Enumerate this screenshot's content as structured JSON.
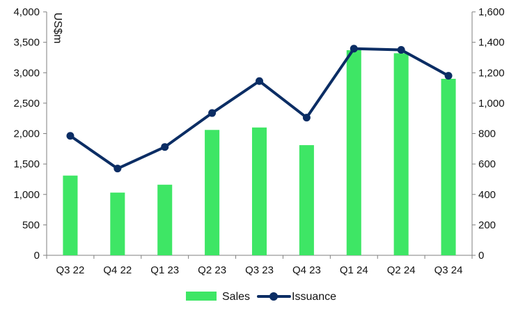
{
  "chart_data": {
    "type": "bar",
    "unit_label": "US$m",
    "categories": [
      "Q3 22",
      "Q4 22",
      "Q1 23",
      "Q2 23",
      "Q3 23",
      "Q4 23",
      "Q1 24",
      "Q2 24",
      "Q3 24"
    ],
    "series": [
      {
        "name": "Sales",
        "type": "bar",
        "axis": "left",
        "color": "#3ee665",
        "values": [
          1310,
          1030,
          1160,
          2060,
          2100,
          1810,
          3370,
          3320,
          2900
        ]
      },
      {
        "name": "Issuance",
        "type": "line",
        "axis": "right",
        "color": "#0b2d64",
        "values": [
          785,
          570,
          712,
          935,
          1145,
          905,
          1358,
          1350,
          1180
        ]
      }
    ],
    "y_left": {
      "min": 0,
      "max": 4000,
      "ticks": [
        "0",
        "500",
        "1,000",
        "1,500",
        "2,000",
        "2,500",
        "3,000",
        "3,500",
        "4,000"
      ]
    },
    "y_right": {
      "min": 0,
      "max": 1600,
      "ticks": [
        "0",
        "200",
        "400",
        "600",
        "800",
        "1,000",
        "1,200",
        "1,400",
        "1,600"
      ]
    },
    "grid": false,
    "legend": "bottom-center"
  }
}
